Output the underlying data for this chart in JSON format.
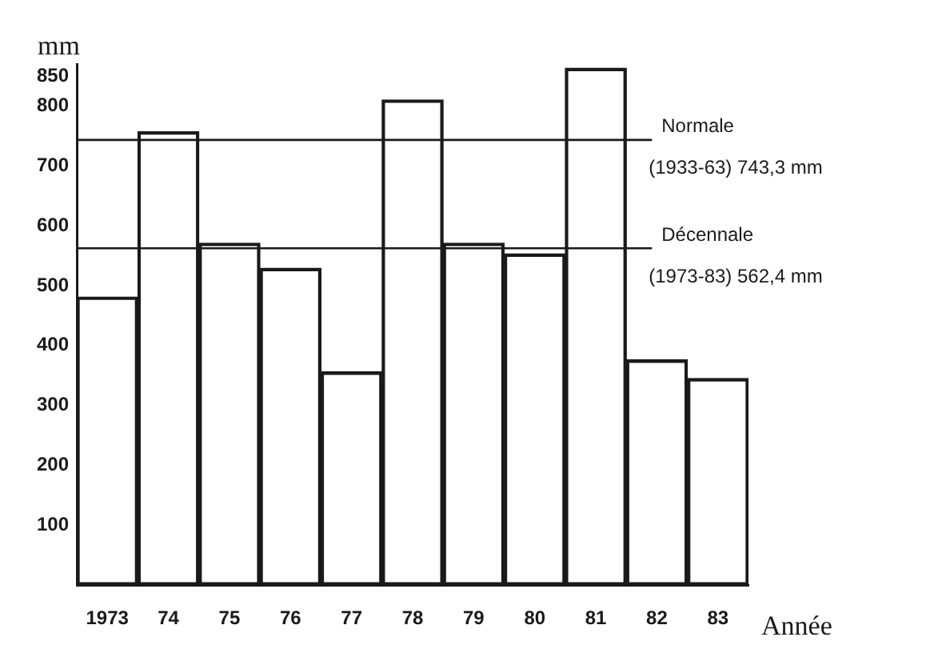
{
  "chart_data": {
    "type": "bar",
    "xlabel": "Année",
    "ylabel": "mm",
    "categories": [
      "1973",
      "74",
      "75",
      "76",
      "77",
      "78",
      "79",
      "80",
      "81",
      "82",
      "83"
    ],
    "values": [
      481,
      757,
      571,
      529,
      356,
      810,
      571,
      553,
      863,
      376,
      345
    ],
    "color": "#1a1a1a",
    "ylim": [
      0,
      870
    ],
    "yticks": [
      100,
      200,
      300,
      400,
      500,
      600,
      700,
      800,
      850
    ],
    "grid": false,
    "legend": false,
    "ref_lines": [
      {
        "axis": "y",
        "value": 743.3,
        "label": "Normale\n(1933-63) 743,3 mm"
      },
      {
        "axis": "y",
        "value": 562.4,
        "label": "Décennale\n(1973-83) 562,4 mm"
      }
    ]
  }
}
